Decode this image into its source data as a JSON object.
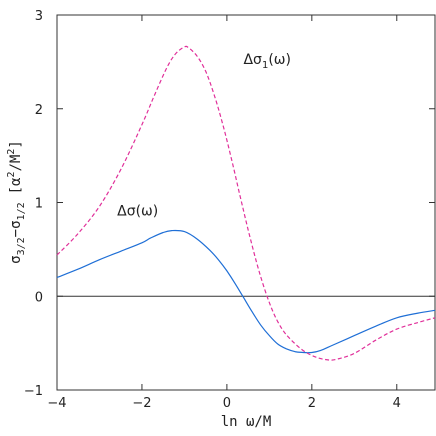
{
  "chart_data": {
    "type": "line",
    "xlabel": "ln ω/M",
    "ylabel_main": "σ",
    "ylabel_sub1": "3/2",
    "ylabel_mid": "−σ",
    "ylabel_sub2": "1/2",
    "ylabel_unit": "[α",
    "ylabel_sup": "2",
    "ylabel_unit2": "/M",
    "ylabel_sup2": "2",
    "ylabel_end": "]",
    "xlim": [
      -4,
      4.9
    ],
    "ylim": [
      -1,
      3
    ],
    "x_ticks": [
      -4,
      -2,
      0,
      2,
      4
    ],
    "x_tick_labels": [
      "−4",
      "−2",
      "0",
      "2",
      "4"
    ],
    "y_ticks": [
      -1,
      0,
      1,
      2,
      3
    ],
    "y_tick_labels": [
      "−1",
      "0",
      "1",
      "2",
      "3"
    ],
    "zero_line": true,
    "grid": false,
    "series": [
      {
        "name": "Δσ(ω)",
        "color": "#1f6fd6",
        "dash": "solid",
        "x": [
          -4.0,
          -3.5,
          -3.0,
          -2.5,
          -2.0,
          -1.8,
          -1.5,
          -1.3,
          -1.0,
          -0.7,
          -0.4,
          -0.2,
          0.0,
          0.2,
          0.4,
          0.6,
          0.8,
          1.0,
          1.2,
          1.4,
          1.6,
          1.8,
          2.0,
          2.2,
          2.5,
          3.0,
          3.5,
          4.0,
          4.5,
          4.9
        ],
        "y": [
          0.2,
          0.29,
          0.39,
          0.48,
          0.57,
          0.62,
          0.68,
          0.7,
          0.69,
          0.61,
          0.49,
          0.39,
          0.27,
          0.13,
          -0.02,
          -0.17,
          -0.31,
          -0.42,
          -0.51,
          -0.56,
          -0.59,
          -0.6,
          -0.6,
          -0.58,
          -0.52,
          -0.42,
          -0.32,
          -0.23,
          -0.18,
          -0.15
        ]
      },
      {
        "name": "Δσ₁(ω)",
        "color": "#e0309a",
        "dash": "dashed",
        "x": [
          -4.0,
          -3.5,
          -3.0,
          -2.5,
          -2.0,
          -1.7,
          -1.4,
          -1.2,
          -1.0,
          -0.9,
          -0.7,
          -0.5,
          -0.3,
          -0.1,
          0.1,
          0.3,
          0.5,
          0.7,
          0.9,
          1.1,
          1.3,
          1.5,
          1.8,
          2.1,
          2.4,
          2.6,
          3.0,
          3.5,
          4.0,
          4.5,
          4.9
        ],
        "y": [
          0.44,
          0.67,
          0.96,
          1.35,
          1.83,
          2.15,
          2.45,
          2.59,
          2.66,
          2.65,
          2.56,
          2.4,
          2.15,
          1.84,
          1.48,
          1.09,
          0.71,
          0.36,
          0.06,
          -0.18,
          -0.35,
          -0.46,
          -0.58,
          -0.65,
          -0.68,
          -0.67,
          -0.61,
          -0.47,
          -0.35,
          -0.28,
          -0.23
        ]
      }
    ],
    "annotations": [
      {
        "series": 1,
        "text_main": "Δσ",
        "sub": "1",
        "text_end": "(ω)",
        "at": [
          0.95,
          2.48
        ]
      },
      {
        "series": 0,
        "text_main": "Δσ",
        "sub": "",
        "text_end": "(ω)",
        "at": [
          -2.1,
          0.86
        ]
      }
    ]
  }
}
